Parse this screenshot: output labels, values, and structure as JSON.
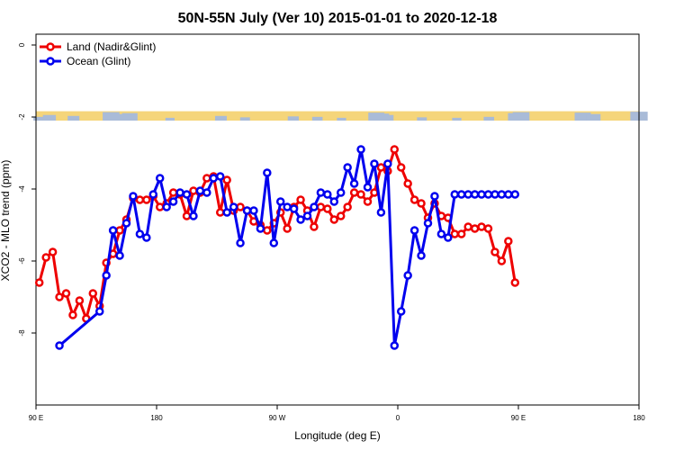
{
  "chart_data": {
    "type": "line",
    "title": "50N-55N July (Ver 10)   2015-01-01 to 2020-12-18",
    "xlabel": "Longitude (deg E)",
    "ylabel": "XCO2 - MLO trend (ppm)",
    "xlim": [
      90,
      450
    ],
    "ylim": [
      -10,
      0
    ],
    "y_display_range": [
      -10.0,
      0.3
    ],
    "xticks": [
      {
        "value": 90,
        "label": "90 E"
      },
      {
        "value": 180,
        "label": "180"
      },
      {
        "value": 270,
        "label": "90 W"
      },
      {
        "value": 360,
        "label": "0"
      },
      {
        "value": 450,
        "label": "90 E"
      },
      {
        "value": 540,
        "label": "180"
      }
    ],
    "yticks": [
      {
        "value": 0,
        "label": "0"
      },
      {
        "value": -2,
        "label": "-2"
      },
      {
        "value": -4,
        "label": "-4"
      },
      {
        "value": -6,
        "label": "-6"
      },
      {
        "value": -8,
        "label": "-8"
      }
    ],
    "x_axis_max_shown": 540,
    "land_ocean_strip": {
      "y_top": -1.84,
      "y_bottom": -2.1,
      "land_color": "#f5d57a",
      "ocean_color": "#a9bbd8",
      "ocean_ranges": [
        [
          90,
          92
        ],
        [
          144,
          158
        ],
        [
          156,
          160
        ],
        [
          344,
          352
        ],
        [
          344,
          350
        ],
        [
          448,
          450
        ],
        [
          498,
          500
        ],
        [
          540,
          540
        ]
      ]
    },
    "legend_position": "top-left",
    "series": [
      {
        "name": "Land (Nadir&Glint)",
        "color": "#ee0000",
        "x": [
          92.5,
          97.5,
          102.5,
          107.5,
          112.5,
          117.5,
          122.5,
          127.5,
          132.5,
          137.5,
          142.5,
          147.5,
          152.5,
          157.5,
          162.5,
          167.5,
          172.5,
          177.5,
          182.5,
          187.5,
          192.5,
          197.5,
          202.5,
          207.5,
          212.5,
          217.5,
          222.5,
          227.5,
          232.5,
          237.5,
          242.5,
          247.5,
          252.5,
          257.5,
          262.5,
          267.5,
          272.5,
          277.5,
          282.5,
          287.5,
          292.5,
          297.5,
          302.5,
          307.5,
          312.5,
          317.5,
          322.5,
          327.5,
          332.5,
          337.5,
          342.5,
          347.5,
          352.5,
          357.5,
          362.5,
          367.5,
          372.5,
          377.5,
          382.5,
          387.5,
          392.5,
          397.5,
          402.5,
          407.5,
          412.5,
          417.5,
          422.5,
          427.5,
          432.5,
          437.5,
          442.5,
          447.5
        ],
        "y": [
          -6.6,
          -5.9,
          -5.75,
          -7.0,
          -6.9,
          -7.5,
          -7.1,
          -7.6,
          -6.9,
          -7.25,
          -6.05,
          -5.8,
          -5.15,
          -4.85,
          -4.25,
          -4.3,
          -4.3,
          -4.2,
          -4.5,
          -4.4,
          -4.1,
          -4.15,
          -4.75,
          -4.05,
          -4.1,
          -3.7,
          -3.65,
          -4.65,
          -3.75,
          -4.6,
          -4.5,
          -4.6,
          -4.9,
          -5.0,
          -5.15,
          -4.95,
          -4.65,
          -5.1,
          -4.5,
          -4.3,
          -4.6,
          -5.05,
          -4.5,
          -4.55,
          -4.85,
          -4.75,
          -4.5,
          -4.1,
          -4.15,
          -4.35,
          -4.1,
          -3.4,
          -3.5,
          -2.9,
          -3.4,
          -3.85,
          -4.3,
          -4.4,
          -4.8,
          -4.4,
          -4.75,
          -4.8,
          -5.25,
          -5.25,
          -5.05,
          -5.1,
          -5.05,
          -5.1,
          -5.75,
          -6.0,
          -5.45,
          -6.6
        ]
      },
      {
        "name": "Ocean (Glint)",
        "color": "#0000ee",
        "x": [
          107.5,
          137.5,
          142.5,
          147.5,
          152.5,
          157.5,
          162.5,
          167.5,
          172.5,
          177.5,
          182.5,
          187.5,
          192.5,
          197.5,
          202.5,
          207.5,
          212.5,
          217.5,
          222.5,
          227.5,
          232.5,
          237.5,
          242.5,
          247.5,
          252.5,
          257.5,
          262.5,
          267.5,
          272.5,
          277.5,
          282.5,
          287.5,
          292.5,
          297.5,
          302.5,
          307.5,
          312.5,
          317.5,
          322.5,
          327.5,
          332.5,
          337.5,
          342.5,
          347.5,
          352.5,
          357.5,
          362.5,
          367.5,
          372.5,
          377.5,
          382.5,
          387.5,
          392.5,
          397.5,
          402.5,
          407.5,
          412.5,
          417.5,
          422.5,
          427.5,
          432.5,
          437.5,
          442.5,
          447.5
        ],
        "y": [
          -8.35,
          -7.4,
          -6.4,
          -5.15,
          -5.85,
          -4.95,
          -4.2,
          -5.25,
          -5.35,
          -4.15,
          -3.7,
          -4.5,
          -4.35,
          -4.1,
          -4.15,
          -4.75,
          -4.05,
          -4.1,
          -3.7,
          -3.65,
          -4.65,
          -4.5,
          -5.5,
          -4.6,
          -4.6,
          -5.1,
          -3.55,
          -5.5,
          -4.35,
          -4.5,
          -4.55,
          -4.85,
          -4.75,
          -4.5,
          -4.1,
          -4.15,
          -4.35,
          -4.1,
          -3.4,
          -3.85,
          -2.9,
          -3.95,
          -3.3,
          -4.65,
          -3.3,
          -8.35,
          -7.4,
          -6.4,
          -5.15,
          -5.85,
          -4.95,
          -4.2,
          -5.25,
          -5.35,
          -4.15,
          -4.15,
          -4.15,
          -4.15,
          -4.15,
          -4.15,
          -4.15,
          -4.15,
          -4.15,
          -4.15
        ],
        "note_unused": ""
      }
    ]
  }
}
